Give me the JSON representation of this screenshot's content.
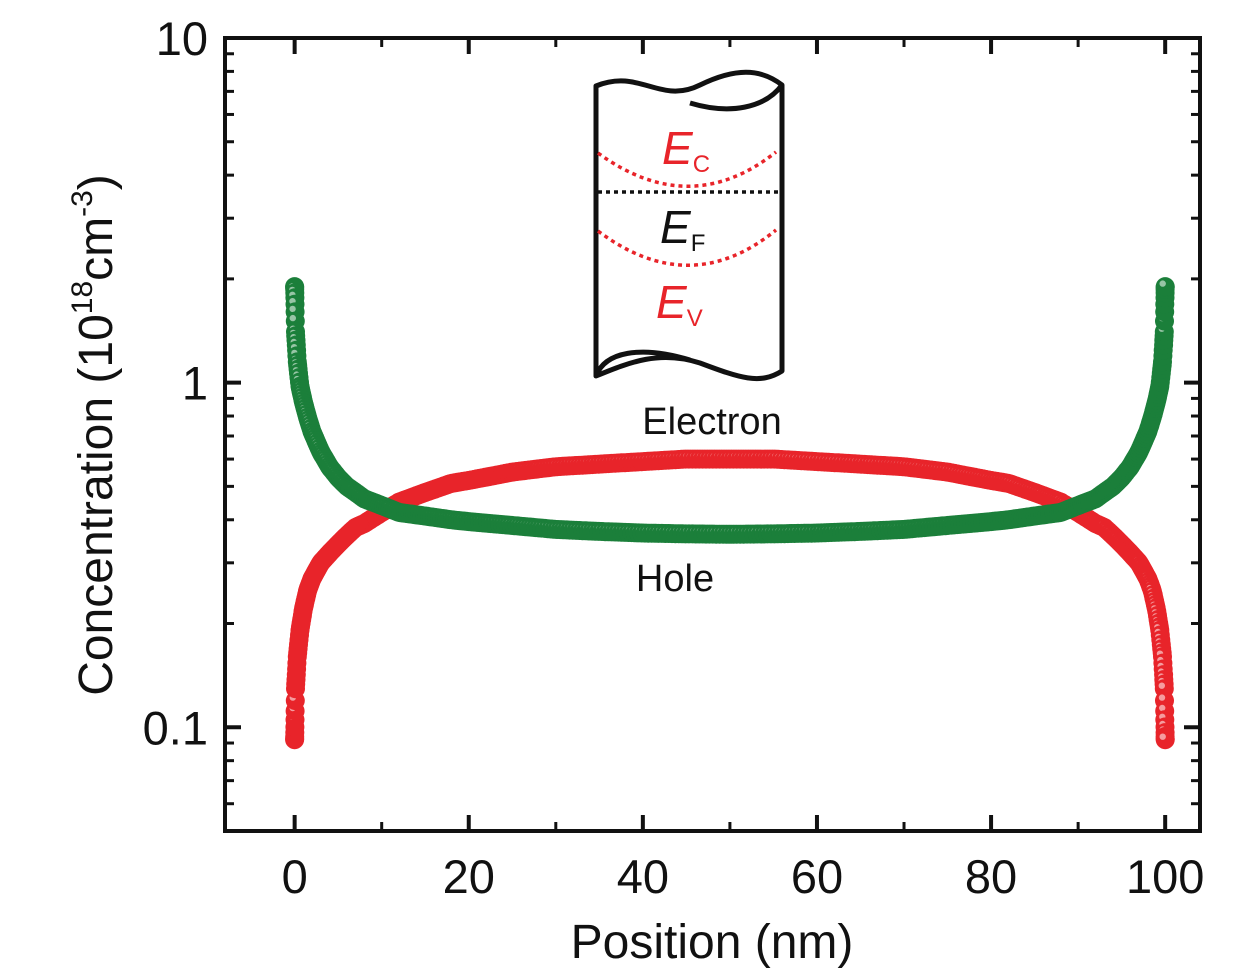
{
  "chart_data": {
    "type": "scatter",
    "xlabel": "Position (nm)",
    "ylabel": {
      "prefix": "Concentration (10",
      "exp1": "18",
      "mid": "cm",
      "exp2": "-3",
      "suffix": ")"
    },
    "xlim": [
      -8,
      104
    ],
    "ylim": [
      0.05,
      10
    ],
    "yscale": "log",
    "x_ticks": [
      0,
      20,
      40,
      60,
      80,
      100
    ],
    "x_tick_labels": [
      "0",
      "20",
      "40",
      "60",
      "80",
      "100"
    ],
    "y_ticks": [
      0.1,
      1,
      10
    ],
    "y_tick_labels": [
      "0.1",
      "1",
      "10"
    ],
    "grid": false,
    "series": [
      {
        "name": "Electron",
        "color": "#e8242a",
        "x": [
          0,
          0.1,
          0.3,
          0.6,
          1,
          1.5,
          2,
          3,
          4,
          5,
          6,
          7,
          8,
          10,
          12,
          15,
          18,
          20,
          25,
          30,
          35,
          40,
          45,
          50,
          55,
          60,
          65,
          70,
          75,
          80,
          82,
          85,
          88,
          90,
          92,
          93,
          94,
          95,
          96,
          97,
          98,
          98.5,
          99,
          99.4,
          99.7,
          99.9,
          100
        ],
        "y": [
          0.092,
          0.13,
          0.16,
          0.19,
          0.22,
          0.25,
          0.27,
          0.3,
          0.32,
          0.34,
          0.36,
          0.38,
          0.39,
          0.42,
          0.45,
          0.48,
          0.51,
          0.52,
          0.55,
          0.57,
          0.58,
          0.59,
          0.6,
          0.6,
          0.6,
          0.59,
          0.58,
          0.57,
          0.55,
          0.52,
          0.51,
          0.48,
          0.45,
          0.42,
          0.39,
          0.38,
          0.36,
          0.34,
          0.32,
          0.3,
          0.27,
          0.25,
          0.22,
          0.19,
          0.16,
          0.13,
          0.092
        ]
      },
      {
        "name": "Hole",
        "color": "#1b7f3a",
        "x": [
          0,
          0.1,
          0.3,
          0.6,
          1,
          1.5,
          2,
          3,
          4,
          5,
          6,
          7,
          8,
          10,
          12,
          15,
          18,
          20,
          25,
          30,
          35,
          40,
          45,
          50,
          55,
          60,
          65,
          70,
          75,
          80,
          82,
          85,
          88,
          90,
          92,
          93,
          94,
          95,
          96,
          97,
          98,
          98.5,
          99,
          99.4,
          99.7,
          99.9,
          100
        ],
        "y": [
          1.9,
          1.4,
          1.15,
          0.98,
          0.88,
          0.79,
          0.72,
          0.63,
          0.57,
          0.53,
          0.5,
          0.48,
          0.46,
          0.44,
          0.42,
          0.41,
          0.4,
          0.395,
          0.385,
          0.375,
          0.37,
          0.366,
          0.364,
          0.363,
          0.364,
          0.366,
          0.37,
          0.375,
          0.385,
          0.395,
          0.4,
          0.41,
          0.42,
          0.44,
          0.46,
          0.48,
          0.5,
          0.53,
          0.57,
          0.63,
          0.72,
          0.79,
          0.88,
          0.98,
          1.15,
          1.4,
          1.9
        ]
      }
    ],
    "annotations": {
      "electron_label": "Electron",
      "hole_label": "Hole",
      "inset": {
        "ec_main": "E",
        "ec_sub": "C",
        "ef_main": "E",
        "ef_sub": "F",
        "ev_main": "E",
        "ev_sub": "V",
        "band_color": "#e8242a",
        "fermi_color": "#111111"
      }
    }
  }
}
